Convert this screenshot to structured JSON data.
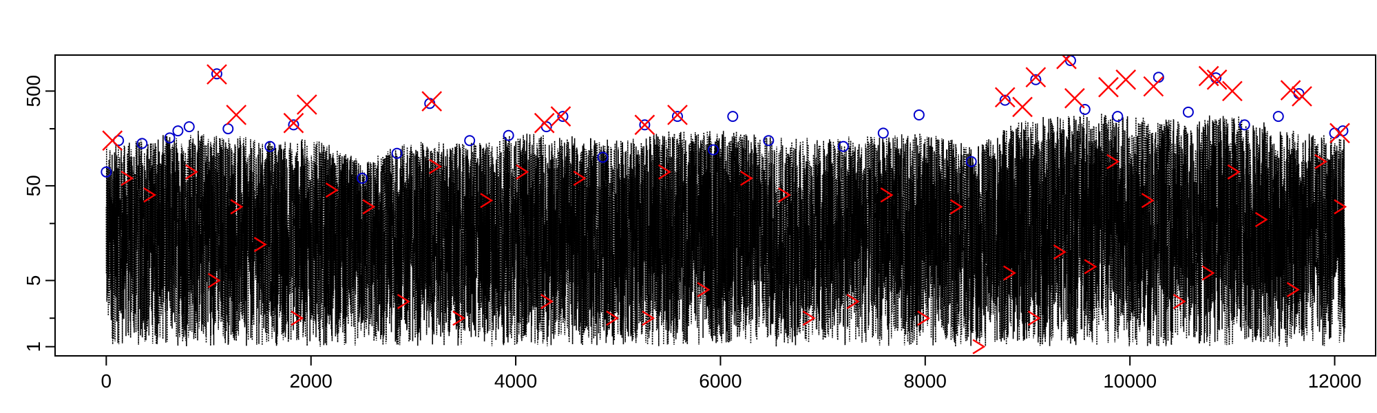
{
  "chart_data": {
    "type": "scatter",
    "title": "",
    "xlabel": "",
    "ylabel": "",
    "xlim": [
      -500,
      12400
    ],
    "ylim": [
      0.8,
      1200
    ],
    "y_scale": "log",
    "grid": false,
    "legend": "none",
    "x_ticks": [
      {
        "value": 0,
        "label": "0"
      },
      {
        "value": 2000,
        "label": "2000"
      },
      {
        "value": 4000,
        "label": "4000"
      },
      {
        "value": 6000,
        "label": "6000"
      },
      {
        "value": 8000,
        "label": "8000"
      },
      {
        "value": 10000,
        "label": "10000"
      },
      {
        "value": 12000,
        "label": "12000"
      }
    ],
    "y_ticks": [
      {
        "value": 1,
        "label": "1"
      },
      {
        "value": 5,
        "label": "5"
      },
      {
        "value": 50,
        "label": "50"
      },
      {
        "value": 500,
        "label": "500"
      }
    ],
    "y_minor_ticks": [
      2,
      20,
      200
    ],
    "series": [
      {
        "mark": "dotted-line",
        "color": "#000000",
        "n_points": 12100,
        "envelope_x": [
          0,
          500,
          1000,
          1500,
          2000,
          2500,
          3000,
          3500,
          4000,
          4500,
          5000,
          5500,
          6000,
          6500,
          7000,
          7500,
          8000,
          8500,
          9000,
          9500,
          10000,
          10500,
          11000,
          11500,
          12100
        ],
        "envelope_upper": [
          130,
          170,
          200,
          150,
          160,
          90,
          150,
          140,
          180,
          170,
          150,
          190,
          200,
          170,
          160,
          170,
          180,
          130,
          260,
          300,
          280,
          250,
          300,
          200,
          160
        ],
        "envelope_lower": [
          1,
          1,
          1,
          1,
          1,
          1,
          1,
          1,
          1,
          1,
          1,
          1,
          1,
          1,
          1,
          1,
          1,
          1,
          1,
          1,
          1,
          1,
          1,
          1,
          1
        ]
      },
      {
        "mark": "circle",
        "color": "#0000cc",
        "points": [
          [
            0,
            70
          ],
          [
            120,
            150
          ],
          [
            350,
            140
          ],
          [
            620,
            160
          ],
          [
            700,
            190
          ],
          [
            810,
            210
          ],
          [
            1080,
            760
          ],
          [
            1190,
            200
          ],
          [
            1600,
            130
          ],
          [
            1830,
            220
          ],
          [
            2500,
            60
          ],
          [
            2840,
            110
          ],
          [
            3160,
            370
          ],
          [
            3550,
            150
          ],
          [
            3930,
            170
          ],
          [
            4300,
            210
          ],
          [
            4460,
            270
          ],
          [
            4850,
            100
          ],
          [
            5260,
            220
          ],
          [
            5580,
            270
          ],
          [
            5930,
            120
          ],
          [
            6120,
            270
          ],
          [
            6470,
            150
          ],
          [
            7200,
            130
          ],
          [
            7590,
            180
          ],
          [
            7940,
            280
          ],
          [
            8450,
            90
          ],
          [
            8780,
            400
          ],
          [
            9080,
            660
          ],
          [
            9420,
            1050
          ],
          [
            9560,
            320
          ],
          [
            9880,
            270
          ],
          [
            10280,
            700
          ],
          [
            10570,
            300
          ],
          [
            10840,
            690
          ],
          [
            11120,
            220
          ],
          [
            11450,
            270
          ],
          [
            11650,
            470
          ],
          [
            12000,
            180
          ],
          [
            12080,
            190
          ]
        ]
      },
      {
        "mark": "x",
        "color": "#ff0000",
        "points": [
          [
            60,
            150
          ],
          [
            1080,
            750
          ],
          [
            1270,
            280
          ],
          [
            1830,
            230
          ],
          [
            1960,
            360
          ],
          [
            3180,
            390
          ],
          [
            4280,
            230
          ],
          [
            4440,
            270
          ],
          [
            5260,
            220
          ],
          [
            5580,
            280
          ],
          [
            8780,
            430
          ],
          [
            8950,
            340
          ],
          [
            9080,
            700
          ],
          [
            9380,
            1090
          ],
          [
            9460,
            420
          ],
          [
            9790,
            550
          ],
          [
            9960,
            660
          ],
          [
            10230,
            560
          ],
          [
            10770,
            720
          ],
          [
            10850,
            660
          ],
          [
            11000,
            500
          ],
          [
            11570,
            510
          ],
          [
            11680,
            440
          ],
          [
            12050,
            180
          ]
        ]
      },
      {
        "mark": "chevron",
        "color": "#ff0000",
        "points": [
          [
            200,
            60
          ],
          [
            420,
            40
          ],
          [
            830,
            70
          ],
          [
            1050,
            5
          ],
          [
            1270,
            30
          ],
          [
            1500,
            12
          ],
          [
            1860,
            2
          ],
          [
            2200,
            45
          ],
          [
            2560,
            30
          ],
          [
            2900,
            3
          ],
          [
            3210,
            80
          ],
          [
            3440,
            2
          ],
          [
            3710,
            35
          ],
          [
            4060,
            70
          ],
          [
            4300,
            3
          ],
          [
            4620,
            60
          ],
          [
            4940,
            2
          ],
          [
            5290,
            2
          ],
          [
            5450,
            70
          ],
          [
            5830,
            4
          ],
          [
            6250,
            60
          ],
          [
            6620,
            40
          ],
          [
            6860,
            2
          ],
          [
            7290,
            3
          ],
          [
            7620,
            40
          ],
          [
            7980,
            2
          ],
          [
            8300,
            30
          ],
          [
            8520,
            1
          ],
          [
            8820,
            6
          ],
          [
            9060,
            2
          ],
          [
            9310,
            10
          ],
          [
            9610,
            7
          ],
          [
            9830,
            90
          ],
          [
            10170,
            35
          ],
          [
            10480,
            3
          ],
          [
            10760,
            6
          ],
          [
            11010,
            70
          ],
          [
            11280,
            22
          ],
          [
            11590,
            4
          ],
          [
            11860,
            90
          ],
          [
            12050,
            30
          ]
        ]
      }
    ]
  }
}
